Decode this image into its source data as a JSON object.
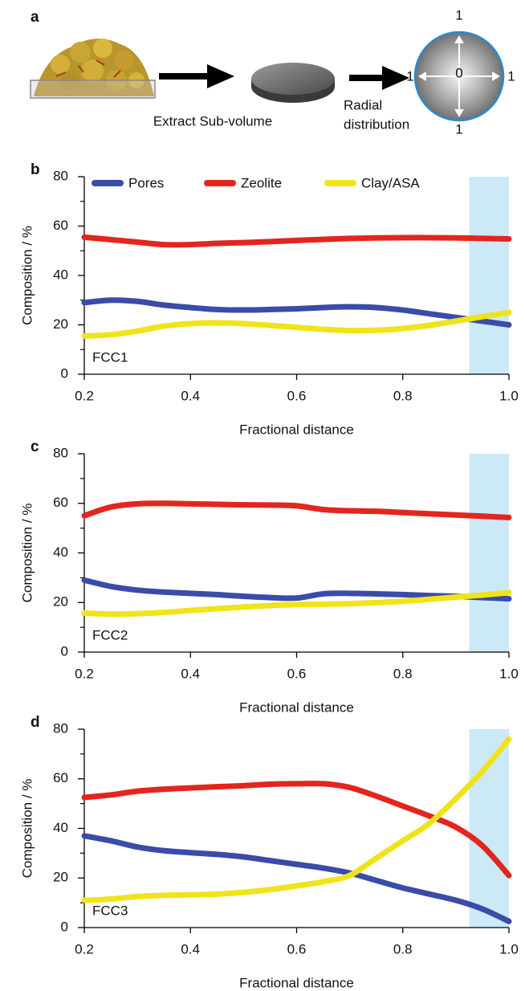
{
  "diagram": {
    "label": "a",
    "step1": "Extract Sub-volume",
    "step2_line1": "Radial",
    "step2_line2": "distribution",
    "center": "0",
    "top": "1",
    "left": "1",
    "right": "1",
    "bottom": "1"
  },
  "chart_data": [
    {
      "type": "line",
      "panel_label": "b",
      "annotation": "FCC1",
      "xlabel": "Fractional distance",
      "ylabel": "Composition / %",
      "x": [
        0.2,
        0.25,
        0.3,
        0.35,
        0.4,
        0.45,
        0.5,
        0.55,
        0.6,
        0.65,
        0.7,
        0.75,
        0.8,
        0.85,
        0.9,
        0.95,
        1.0
      ],
      "series": [
        {
          "name": "Pores",
          "color": "#3a4ba8",
          "values": [
            29,
            30,
            29.5,
            28,
            27,
            26.2,
            26,
            26.2,
            26.5,
            27,
            27.3,
            27,
            26,
            24.5,
            23,
            21.5,
            20
          ]
        },
        {
          "name": "Zeolite",
          "color": "#e2261e",
          "values": [
            55.5,
            54.5,
            53.5,
            52.5,
            52.5,
            53,
            53.3,
            53.7,
            54.2,
            54.6,
            55,
            55.2,
            55.3,
            55.3,
            55.2,
            55,
            54.8
          ]
        },
        {
          "name": "Clay/ASA",
          "color": "#f0e31a",
          "values": [
            15.5,
            16,
            17.5,
            19.5,
            20.5,
            20.8,
            20.5,
            19.8,
            19,
            18.2,
            17.7,
            17.8,
            18.5,
            19.8,
            21.5,
            23.3,
            25
          ]
        }
      ],
      "xlim": [
        0.2,
        1.0
      ],
      "xticks": [
        0.2,
        0.4,
        0.6,
        0.8,
        {
          "value": 1,
          "label": "1.0"
        }
      ],
      "ylim": [
        0,
        80
      ],
      "yticks": [
        0,
        20,
        40,
        60,
        80
      ],
      "yticks_minor": [
        10,
        30,
        50,
        70
      ],
      "highlight": [
        0.925,
        1.0
      ],
      "highlight_color": "#cce9f8",
      "legend": "top"
    },
    {
      "type": "line",
      "panel_label": "c",
      "annotation": "FCC2",
      "xlabel": "Fractional distance",
      "ylabel": "Composition / %",
      "x": [
        0.2,
        0.25,
        0.3,
        0.35,
        0.4,
        0.45,
        0.5,
        0.55,
        0.6,
        0.65,
        0.7,
        0.75,
        0.8,
        0.85,
        0.9,
        0.95,
        1.0
      ],
      "series": [
        {
          "color": "#3a4ba8",
          "values": [
            29,
            26.5,
            25,
            24.2,
            23.7,
            23.2,
            22.5,
            22,
            21.8,
            23.5,
            23.7,
            23.5,
            23.2,
            22.8,
            22.5,
            22,
            21.5
          ]
        },
        {
          "color": "#e2261e",
          "values": [
            55,
            58.5,
            59.8,
            60,
            59.8,
            59.6,
            59.4,
            59.3,
            59,
            57.5,
            57,
            56.8,
            56.3,
            55.8,
            55.3,
            54.8,
            54.3
          ]
        },
        {
          "color": "#f0e31a",
          "values": [
            15.8,
            15.3,
            15.5,
            16,
            16.8,
            17.5,
            18.2,
            18.8,
            19.2,
            19.3,
            19.5,
            19.9,
            20.5,
            21.3,
            22.2,
            23,
            24
          ]
        }
      ],
      "xlim": [
        0.2,
        1.0
      ],
      "xticks": [
        0.2,
        0.4,
        0.6,
        0.8,
        {
          "value": 1,
          "label": "1.0"
        }
      ],
      "ylim": [
        0,
        80
      ],
      "yticks": [
        0,
        20,
        40,
        60,
        80
      ],
      "yticks_minor": [
        10,
        30,
        50,
        70
      ],
      "highlight": [
        0.925,
        1.0
      ],
      "highlight_color": "#cce9f8"
    },
    {
      "type": "line",
      "panel_label": "d",
      "annotation": "FCC3",
      "xlabel": "Fractional distance",
      "ylabel": "Composition / %",
      "x": [
        0.2,
        0.25,
        0.3,
        0.35,
        0.4,
        0.45,
        0.5,
        0.55,
        0.6,
        0.65,
        0.7,
        0.75,
        0.8,
        0.85,
        0.9,
        0.95,
        1.0
      ],
      "series": [
        {
          "color": "#3a4ba8",
          "values": [
            37,
            35,
            32.5,
            31,
            30.2,
            29.5,
            28.5,
            27,
            25.5,
            24,
            22,
            19,
            16,
            13.5,
            11,
            7.5,
            2.5
          ]
        },
        {
          "color": "#e2261e",
          "values": [
            52.5,
            53.5,
            55,
            55.8,
            56.3,
            56.8,
            57.2,
            57.8,
            58,
            58,
            56.5,
            53,
            49,
            45,
            40.5,
            33,
            21
          ]
        },
        {
          "color": "#f0e31a",
          "values": [
            11,
            11.5,
            12.5,
            13,
            13.2,
            13.5,
            14.2,
            15.3,
            16.8,
            18.5,
            21,
            28,
            35,
            42,
            52,
            63,
            76
          ]
        }
      ],
      "xlim": [
        0.2,
        1.0
      ],
      "xticks": [
        0.2,
        0.4,
        0.6,
        0.8,
        {
          "value": 1,
          "label": "1.0"
        }
      ],
      "ylim": [
        0,
        80
      ],
      "yticks": [
        0,
        20,
        40,
        60,
        80
      ],
      "yticks_minor": [
        10,
        30,
        50,
        70
      ],
      "highlight": [
        0.925,
        1.0
      ],
      "highlight_color": "#cce9f8"
    }
  ]
}
